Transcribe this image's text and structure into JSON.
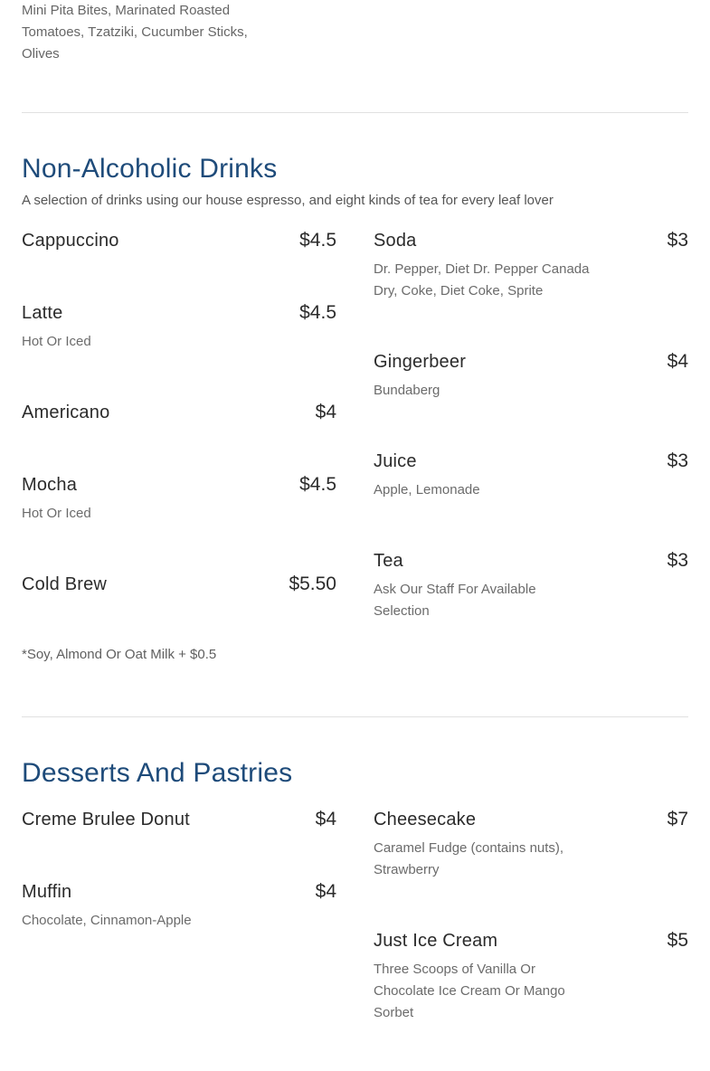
{
  "page": {
    "background": "#ffffff",
    "heading_color": "#1e4b7a",
    "divider_color": "#e1e1e1",
    "item_text_color": "#2b2b2b",
    "muted_text_color": "#6b6b6b"
  },
  "partial_item_description": "Mini Pita Bites, Marinated Roasted Tomatoes, Tzatziki, Cucumber Sticks, Olives",
  "sections": [
    {
      "title": "Non-Alcoholic Drinks",
      "subtitle": "A selection of drinks using our house espresso, and eight kinds of tea for every leaf lover",
      "footnote": "*Soy, Almond Or Oat Milk + $0.5",
      "columns": [
        {
          "items": [
            {
              "name": "Cappuccino",
              "price": "$4.5",
              "description": ""
            },
            {
              "name": "Latte",
              "price": "$4.5",
              "description": "Hot Or Iced"
            },
            {
              "name": "Americano",
              "price": "$4",
              "description": ""
            },
            {
              "name": "Mocha",
              "price": "$4.5",
              "description": "Hot Or Iced"
            },
            {
              "name": "Cold Brew",
              "price": "$5.50",
              "description": ""
            }
          ]
        },
        {
          "items": [
            {
              "name": "Soda",
              "price": "$3",
              "description": "Dr. Pepper, Diet Dr. Pepper Canada Dry, Coke, Diet Coke, Sprite"
            },
            {
              "name": "Gingerbeer",
              "price": "$4",
              "description": "Bundaberg"
            },
            {
              "name": "Juice",
              "price": "$3",
              "description": "Apple, Lemonade"
            },
            {
              "name": "Tea",
              "price": "$3",
              "description": "Ask Our Staff For Available Selection"
            }
          ]
        }
      ]
    },
    {
      "title": "Desserts And Pastries",
      "subtitle": "",
      "footnote": "",
      "columns": [
        {
          "items": [
            {
              "name": "Creme Brulee Donut",
              "price": "$4",
              "description": ""
            },
            {
              "name": "Muffin",
              "price": "$4",
              "description": "Chocolate, Cinnamon-Apple"
            }
          ]
        },
        {
          "items": [
            {
              "name": "Cheesecake",
              "price": "$7",
              "description": "Caramel Fudge (contains nuts), Strawberry"
            },
            {
              "name": "Just Ice Cream",
              "price": "$5",
              "description": "Three Scoops of Vanilla Or Chocolate Ice Cream Or Mango Sorbet"
            }
          ]
        }
      ]
    }
  ]
}
